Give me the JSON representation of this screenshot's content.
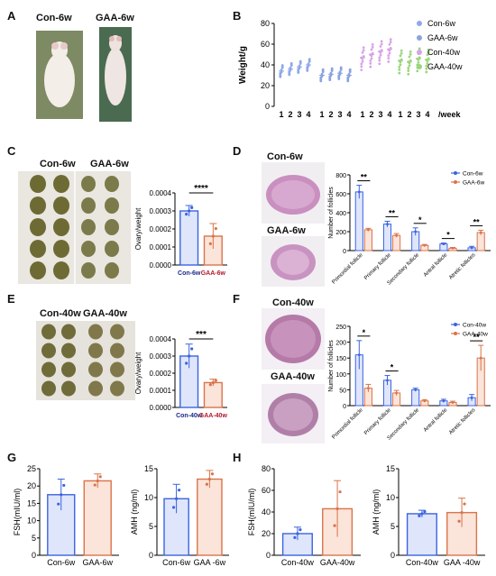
{
  "figure": {
    "panel_letters": [
      "A",
      "B",
      "C",
      "D",
      "E",
      "F",
      "G",
      "H"
    ],
    "photo_labels": {
      "A_con": "Con-6w",
      "A_gaa": "GAA-6w",
      "C_con": "Con-6w",
      "C_gaa": "GAA-6w",
      "D_con": "Con-6w",
      "D_gaa": "GAA-6w",
      "E_con": "Con-40w",
      "E_gaa": "GAA-40w",
      "F_con": "Con-40w",
      "F_gaa": "GAA-40w"
    },
    "colors": {
      "blue": "#3b63e0",
      "blue_fill": "#dfe6fb",
      "orange": "#d9744a",
      "orange_fill": "#fbe4d9",
      "con6w": "#8fa9e8",
      "gaa6w": "#8aa3e0",
      "con40w": "#d8a3e6",
      "gaa40w": "#9ad67c",
      "red_label": "#b2182b",
      "navy_label": "#1d2a8a"
    }
  },
  "chart_data": [
    {
      "id": "B",
      "type": "scatter",
      "ylabel": "Weight/g",
      "xlabel": "/week",
      "ylim": [
        0,
        80
      ],
      "yticks": [
        0,
        20,
        40,
        60,
        80
      ],
      "legend": [
        "Con-6w",
        "GAA-6w",
        "Con-40w",
        "GAA-40w"
      ],
      "groups": [
        {
          "name": "Con-6w",
          "weeks": [
            "1",
            "2",
            "3",
            "4"
          ],
          "means": [
            34,
            36,
            38,
            40
          ]
        },
        {
          "name": "GAA-6w",
          "weeks": [
            "1",
            "2",
            "3",
            "4"
          ],
          "means": [
            30,
            31,
            32,
            30
          ]
        },
        {
          "name": "Con-40w",
          "weeks": [
            "1",
            "2",
            "3",
            "4"
          ],
          "means": [
            47,
            50,
            53,
            55
          ]
        },
        {
          "name": "GAA-40w",
          "weeks": [
            "1",
            "2",
            "3",
            "4"
          ],
          "means": [
            44,
            43,
            46,
            45
          ]
        }
      ]
    },
    {
      "id": "C",
      "type": "bar",
      "ylabel": "Ovary/weight",
      "categories": [
        "Con-6w",
        "GAA-6w"
      ],
      "values": [
        0.0003,
        0.00016
      ],
      "errors": [
        3e-05,
        7e-05
      ],
      "ylim": [
        0,
        0.0004
      ],
      "yticks": [
        "0.0000",
        "0.0001",
        "0.0002",
        "0.0003",
        "0.0004"
      ],
      "significance": "****"
    },
    {
      "id": "D",
      "type": "bar",
      "ylabel": "Number of follicles",
      "categories": [
        "Primordial follicle",
        "Primary follicle",
        "Secondary follicle",
        "Antral follicle",
        "Atretic follicles"
      ],
      "series": [
        {
          "name": "Con-6w",
          "values": [
            620,
            280,
            200,
            70,
            30
          ],
          "errors": [
            70,
            30,
            40,
            10,
            15
          ]
        },
        {
          "name": "GAA-6w",
          "values": [
            220,
            160,
            55,
            25,
            190
          ],
          "errors": [
            15,
            20,
            10,
            8,
            25
          ]
        }
      ],
      "ylim": [
        0,
        800
      ],
      "yticks": [
        0,
        200,
        400,
        600,
        800
      ],
      "significance": [
        "**",
        "**",
        "*",
        "*",
        "**"
      ]
    },
    {
      "id": "E",
      "type": "bar",
      "ylabel": "Ovary/weight",
      "categories": [
        "Con-40w",
        "GAA-40w"
      ],
      "values": [
        0.0003,
        0.000145
      ],
      "errors": [
        7e-05,
        2e-05
      ],
      "ylim": [
        0,
        0.0004
      ],
      "yticks": [
        "0.0000",
        "0.0001",
        "0.0002",
        "0.0003",
        "0.0004"
      ],
      "significance": "***"
    },
    {
      "id": "F",
      "type": "bar",
      "ylabel": "Number of follicles",
      "categories": [
        "Primordial follicle",
        "Primary follicle",
        "Secondary follicle",
        "Antral follicle",
        "Atretic follicles"
      ],
      "series": [
        {
          "name": "Con-40w",
          "values": [
            160,
            80,
            50,
            15,
            25
          ],
          "errors": [
            45,
            15,
            5,
            5,
            10
          ]
        },
        {
          "name": "GAA-40w",
          "values": [
            55,
            40,
            15,
            10,
            150
          ],
          "errors": [
            12,
            8,
            4,
            4,
            40
          ]
        }
      ],
      "ylim": [
        0,
        250
      ],
      "yticks": [
        0,
        50,
        100,
        150,
        200,
        250
      ],
      "significance": [
        "*",
        "*",
        "",
        "",
        "**"
      ]
    },
    {
      "id": "G1",
      "type": "bar",
      "ylabel": "FSH(mIU/ml)",
      "categories": [
        "Con-6w",
        "GAA-6w"
      ],
      "values": [
        17.5,
        21.5
      ],
      "errors": [
        4.5,
        2
      ],
      "ylim": [
        0,
        25
      ],
      "yticks": [
        0,
        5,
        10,
        15,
        20,
        25
      ]
    },
    {
      "id": "G2",
      "type": "bar",
      "ylabel": "AMH  (ng/ml)",
      "categories": [
        "Con-6w",
        "GAA -6w"
      ],
      "values": [
        9.8,
        13.2
      ],
      "errors": [
        2.5,
        1.5
      ],
      "ylim": [
        0,
        15
      ],
      "yticks": [
        0,
        5,
        10,
        15
      ]
    },
    {
      "id": "H1",
      "type": "bar",
      "ylabel": "FSH(mIU/ml)",
      "categories": [
        "Con-40w",
        "GAA-40w"
      ],
      "values": [
        20,
        43
      ],
      "errors": [
        6,
        26
      ],
      "ylim": [
        0,
        80
      ],
      "yticks": [
        0,
        20,
        40,
        60,
        80
      ]
    },
    {
      "id": "H2",
      "type": "bar",
      "ylabel": "AMH  (ng/ml)",
      "categories": [
        "Con-40w",
        "GAA -40w"
      ],
      "values": [
        7.2,
        7.4
      ],
      "errors": [
        0.6,
        2.5
      ],
      "ylim": [
        0,
        15
      ],
      "yticks": [
        0,
        5,
        10,
        15
      ]
    }
  ]
}
